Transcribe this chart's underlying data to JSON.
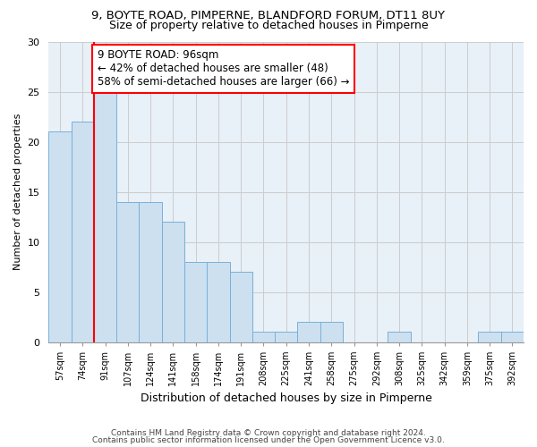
{
  "title1": "9, BOYTE ROAD, PIMPERNE, BLANDFORD FORUM, DT11 8UY",
  "title2": "Size of property relative to detached houses in Pimperne",
  "xlabel": "Distribution of detached houses by size in Pimperne",
  "ylabel": "Number of detached properties",
  "categories": [
    "57sqm",
    "74sqm",
    "91sqm",
    "107sqm",
    "124sqm",
    "141sqm",
    "158sqm",
    "174sqm",
    "191sqm",
    "208sqm",
    "225sqm",
    "241sqm",
    "258sqm",
    "275sqm",
    "292sqm",
    "308sqm",
    "325sqm",
    "342sqm",
    "359sqm",
    "375sqm",
    "392sqm"
  ],
  "values": [
    21,
    22,
    25,
    14,
    14,
    12,
    8,
    8,
    7,
    1,
    1,
    2,
    2,
    0,
    0,
    1,
    0,
    0,
    0,
    1,
    1
  ],
  "bar_color": "#cce0f0",
  "bar_edge_color": "#7ab0d8",
  "red_line_x": 1.5,
  "annotation_box_text": "9 BOYTE ROAD: 96sqm\n← 42% of detached houses are smaller (48)\n58% of semi-detached houses are larger (66) →",
  "ylim": [
    0,
    30
  ],
  "yticks": [
    0,
    5,
    10,
    15,
    20,
    25,
    30
  ],
  "grid_color": "#cccccc",
  "background_color": "#e8f0f8",
  "footer1": "Contains HM Land Registry data © Crown copyright and database right 2024.",
  "footer2": "Contains public sector information licensed under the Open Government Licence v3.0."
}
